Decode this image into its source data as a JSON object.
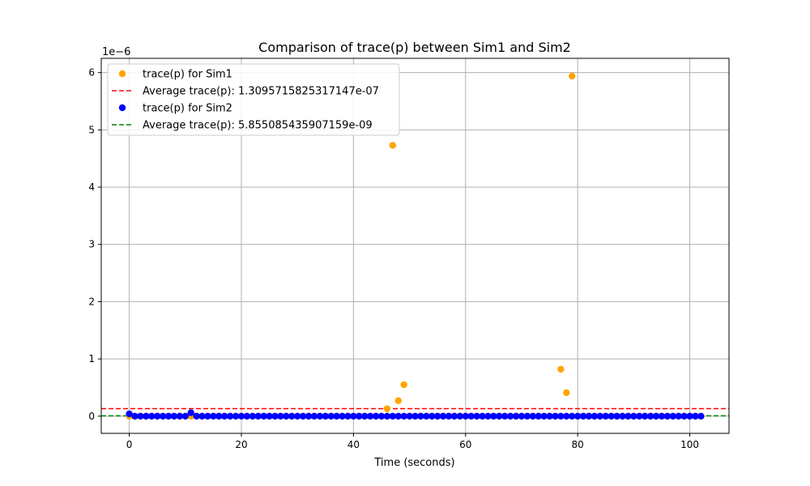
{
  "chart_data": {
    "type": "scatter",
    "title": "Comparison of trace(p) between Sim1 and Sim2",
    "xlabel": "Time (seconds)",
    "ylabel": "",
    "y_multiplier_label": "1e−6",
    "xlim": [
      -5,
      107
    ],
    "ylim": [
      -0.3,
      6.25
    ],
    "y_scale_factor": 1e-06,
    "x_ticks": [
      0,
      20,
      40,
      60,
      80,
      100
    ],
    "y_ticks": [
      0,
      1,
      2,
      3,
      4,
      5,
      6
    ],
    "grid": true,
    "legend_position": "upper-left",
    "series": [
      {
        "name": "trace(p) for Sim1",
        "kind": "scatter",
        "color": "#ffa500",
        "outliers": [
          [
            46,
            0.13
          ],
          [
            47,
            4.73
          ],
          [
            48,
            0.27
          ],
          [
            49,
            0.55
          ],
          [
            77,
            0.82
          ],
          [
            78,
            0.41
          ],
          [
            79,
            5.94
          ]
        ]
      },
      {
        "name": "Average trace(p): 1.3095715825317147e-07",
        "kind": "hline",
        "color": "#ff0000",
        "y": 0.130957
      },
      {
        "name": "trace(p) for Sim2",
        "kind": "scatter",
        "color": "#0000ff",
        "outliers": [
          [
            0,
            0.04
          ],
          [
            11,
            0.06
          ]
        ]
      },
      {
        "name": "Average trace(p): 5.855085435907159e-09",
        "kind": "hline",
        "color": "#008000",
        "y": 0.005855
      }
    ],
    "baseline_x_range": [
      0,
      102
    ],
    "baseline_value": 0.0
  }
}
